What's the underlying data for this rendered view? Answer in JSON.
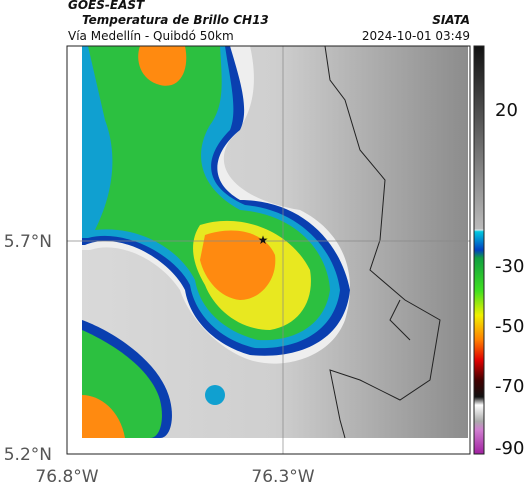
{
  "header": {
    "title": "GOES-EAST",
    "subtitle": "Temperatura de Brillo CH13",
    "location": "Vía Medellín - Quibdó 50km",
    "source": "SIATA",
    "timestamp": "2024-10-01 03:49"
  },
  "map": {
    "lat_ticks": [
      "5.7°N",
      "5.2°N"
    ],
    "lon_ticks": [
      "76.8°W",
      "76.3°W"
    ]
  },
  "colorbar": {
    "ticks": [
      20,
      -30,
      -50,
      -70,
      -90
    ]
  }
}
